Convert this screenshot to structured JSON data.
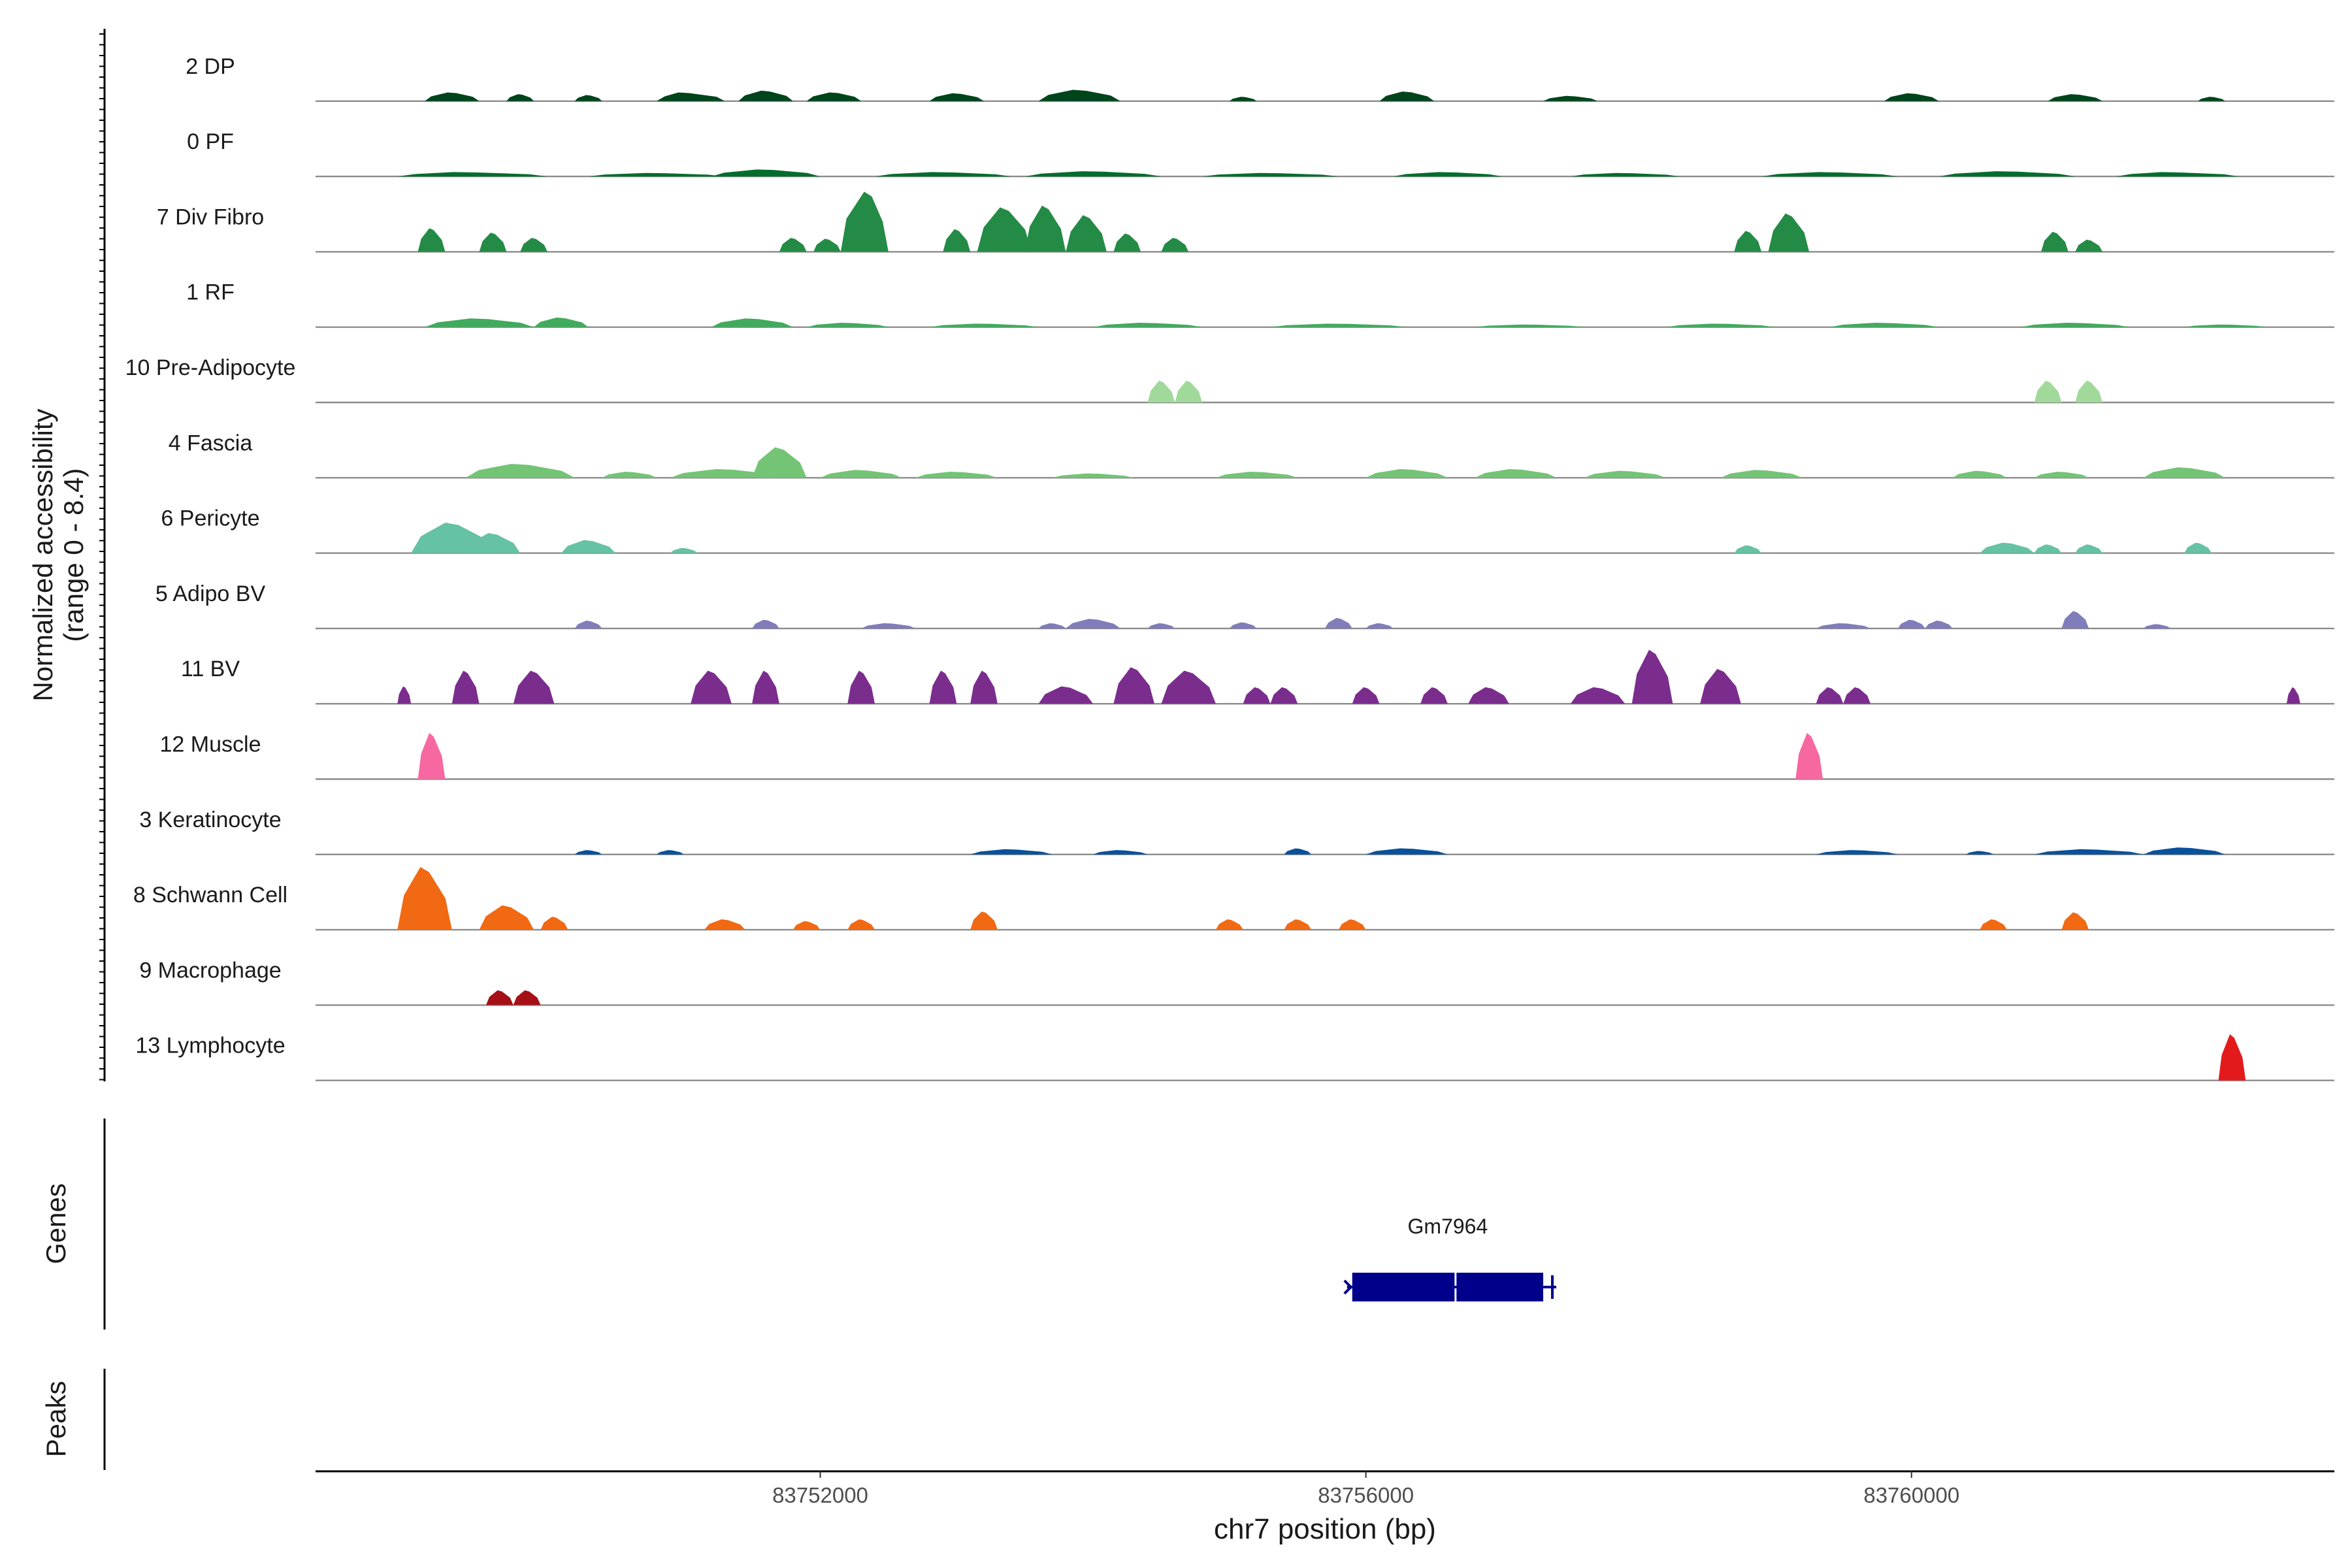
{
  "chart_data": {
    "type": "area",
    "title": "",
    "ylabel_line1": "Normalized accessibility",
    "ylabel_line2": "(range 0 - 8.4)",
    "y_range": [
      0,
      8.4
    ],
    "xlabel": "chr7 position (bp)",
    "xlim": [
      83748300,
      83763100
    ],
    "x_ticks": [
      83752000,
      83756000,
      83760000
    ],
    "x_tick_labels": [
      "83752000",
      "83756000",
      "83760000"
    ],
    "genes_label": "Genes",
    "peaks_label": "Peaks",
    "gene": {
      "name": "Gm7964",
      "start": 83755900,
      "end": 83757300,
      "strand": "-",
      "color": "#00008B"
    },
    "tracks": [
      {
        "name": "2 DP",
        "color": "#00441B",
        "peaks": [
          [
            83749300,
            83749100,
            83749500,
            1.0
          ],
          [
            83749800,
            83749700,
            83749900,
            0.8
          ],
          [
            83750300,
            83750200,
            83750400,
            0.7
          ],
          [
            83751000,
            83750800,
            83751300,
            1.0
          ],
          [
            83751600,
            83751400,
            83751800,
            1.2
          ],
          [
            83752100,
            83751900,
            83752300,
            1.0
          ],
          [
            83753000,
            83752800,
            83753200,
            0.9
          ],
          [
            83753900,
            83753600,
            83754200,
            1.3
          ],
          [
            83755100,
            83755000,
            83755200,
            0.5
          ],
          [
            83756300,
            83756100,
            83756500,
            1.1
          ],
          [
            83757500,
            83757300,
            83757700,
            0.6
          ],
          [
            83760000,
            83759800,
            83760200,
            0.9
          ],
          [
            83761200,
            83761000,
            83761400,
            0.8
          ],
          [
            83762200,
            83762100,
            83762300,
            0.5
          ]
        ]
      },
      {
        "name": "0 PF",
        "color": "#006D2C",
        "peaks": [
          [
            83749400,
            83748900,
            83750000,
            0.5
          ],
          [
            83750800,
            83750300,
            83751300,
            0.4
          ],
          [
            83751600,
            83751200,
            83752000,
            0.8
          ],
          [
            83752900,
            83752400,
            83753400,
            0.5
          ],
          [
            83754000,
            83753500,
            83754500,
            0.6
          ],
          [
            83755300,
            83754800,
            83755800,
            0.4
          ],
          [
            83756600,
            83756200,
            83757000,
            0.5
          ],
          [
            83757900,
            83757500,
            83758300,
            0.4
          ],
          [
            83759400,
            83758900,
            83759900,
            0.5
          ],
          [
            83760700,
            83760200,
            83761200,
            0.6
          ],
          [
            83761900,
            83761500,
            83762400,
            0.5
          ]
        ]
      },
      {
        "name": "7 Div Fibro",
        "color": "#238B45",
        "peaks": [
          [
            83749150,
            83749050,
            83749250,
            2.7
          ],
          [
            83749600,
            83749500,
            83749700,
            2.2
          ],
          [
            83749900,
            83749800,
            83750000,
            1.6
          ],
          [
            83751800,
            83751700,
            83751900,
            1.6
          ],
          [
            83752050,
            83751950,
            83752150,
            1.5
          ],
          [
            83752350,
            83752150,
            83752500,
            6.9
          ],
          [
            83753000,
            83752900,
            83753100,
            2.6
          ],
          [
            83753350,
            83753150,
            83753550,
            5.1
          ],
          [
            83753650,
            83753500,
            83753800,
            5.3
          ],
          [
            83753950,
            83753800,
            83754100,
            4.2
          ],
          [
            83754250,
            83754150,
            83754350,
            2.1
          ],
          [
            83754600,
            83754500,
            83754700,
            1.6
          ],
          [
            83758800,
            83758700,
            83758900,
            2.4
          ],
          [
            83759100,
            83758950,
            83759250,
            4.4
          ],
          [
            83761050,
            83760950,
            83761150,
            2.3
          ],
          [
            83761300,
            83761200,
            83761400,
            1.4
          ]
        ]
      },
      {
        "name": "1 RF",
        "color": "#41AB5D",
        "peaks": [
          [
            83749500,
            83749100,
            83749900,
            1.0
          ],
          [
            83750100,
            83749900,
            83750300,
            1.1
          ],
          [
            83751500,
            83751200,
            83751800,
            1.0
          ],
          [
            83752200,
            83751900,
            83752500,
            0.5
          ],
          [
            83753200,
            83752800,
            83753600,
            0.4
          ],
          [
            83754400,
            83754000,
            83754800,
            0.5
          ],
          [
            83755800,
            83755300,
            83756300,
            0.4
          ],
          [
            83757200,
            83756800,
            83757600,
            0.3
          ],
          [
            83758600,
            83758200,
            83759000,
            0.4
          ],
          [
            83759800,
            83759400,
            83760200,
            0.5
          ],
          [
            83761200,
            83760800,
            83761600,
            0.5
          ],
          [
            83762300,
            83762000,
            83762600,
            0.3
          ]
        ]
      },
      {
        "name": "10 Pre-Adipocyte",
        "color": "#A1D99B",
        "peaks": [
          [
            83754500,
            83754400,
            83754600,
            2.5
          ],
          [
            83754700,
            83754600,
            83754800,
            2.5
          ],
          [
            83761000,
            83760900,
            83761100,
            2.5
          ],
          [
            83761300,
            83761200,
            83761400,
            2.5
          ]
        ]
      },
      {
        "name": "4 Fascia",
        "color": "#74C476",
        "peaks": [
          [
            83749800,
            83749400,
            83750200,
            1.6
          ],
          [
            83750600,
            83750400,
            83750800,
            0.7
          ],
          [
            83751300,
            83750900,
            83751700,
            1.0
          ],
          [
            83751700,
            83751500,
            83751900,
            3.5
          ],
          [
            83752300,
            83752000,
            83752600,
            0.9
          ],
          [
            83753000,
            83752700,
            83753300,
            0.7
          ],
          [
            83754000,
            83753700,
            83754300,
            0.5
          ],
          [
            83755200,
            83754900,
            83755500,
            0.7
          ],
          [
            83756300,
            83756000,
            83756600,
            1.0
          ],
          [
            83757100,
            83756800,
            83757400,
            1.0
          ],
          [
            83757900,
            83757600,
            83758200,
            0.8
          ],
          [
            83758900,
            83758600,
            83759200,
            0.9
          ],
          [
            83760500,
            83760300,
            83760700,
            0.8
          ],
          [
            83761100,
            83760900,
            83761300,
            0.7
          ],
          [
            83762000,
            83761700,
            83762300,
            1.2
          ]
        ]
      },
      {
        "name": "6 Pericyte",
        "color": "#66C2A4",
        "peaks": [
          [
            83749300,
            83749000,
            83749600,
            3.5
          ],
          [
            83749600,
            83749400,
            83749800,
            2.3
          ],
          [
            83750300,
            83750100,
            83750500,
            1.5
          ],
          [
            83751000,
            83750900,
            83751100,
            0.6
          ],
          [
            83758800,
            83758700,
            83758900,
            0.9
          ],
          [
            83760700,
            83760500,
            83760900,
            1.2
          ],
          [
            83761000,
            83760900,
            83761100,
            1.0
          ],
          [
            83761300,
            83761200,
            83761400,
            1.0
          ],
          [
            83762100,
            83762000,
            83762200,
            1.2
          ]
        ]
      },
      {
        "name": "5 Adipo BV",
        "color": "#807DBA",
        "peaks": [
          [
            83750300,
            83750200,
            83750400,
            0.9
          ],
          [
            83751600,
            83751500,
            83751700,
            1.0
          ],
          [
            83752500,
            83752300,
            83752700,
            0.6
          ],
          [
            83753700,
            83753600,
            83753800,
            0.6
          ],
          [
            83754000,
            83753800,
            83754200,
            1.1
          ],
          [
            83754500,
            83754400,
            83754600,
            0.6
          ],
          [
            83755100,
            83755000,
            83755200,
            0.7
          ],
          [
            83755800,
            83755700,
            83755900,
            1.2
          ],
          [
            83756100,
            83756000,
            83756200,
            0.6
          ],
          [
            83759500,
            83759300,
            83759700,
            0.6
          ],
          [
            83760000,
            83759900,
            83760100,
            1.0
          ],
          [
            83760200,
            83760100,
            83760300,
            0.9
          ],
          [
            83761200,
            83761100,
            83761300,
            2.0
          ],
          [
            83761800,
            83761700,
            83761900,
            0.5
          ]
        ]
      },
      {
        "name": "11 BV",
        "color": "#7B2D8E",
        "peaks": [
          [
            83748950,
            83748900,
            83749000,
            2.0
          ],
          [
            83749400,
            83749300,
            83749500,
            3.8
          ],
          [
            83749900,
            83749750,
            83750050,
            3.8
          ],
          [
            83751200,
            83751050,
            83751350,
            3.8
          ],
          [
            83751600,
            83751500,
            83751700,
            3.8
          ],
          [
            83752300,
            83752200,
            83752400,
            3.8
          ],
          [
            83752900,
            83752800,
            83753000,
            3.8
          ],
          [
            83753200,
            83753100,
            83753300,
            3.8
          ],
          [
            83753800,
            83753600,
            83754000,
            2.0
          ],
          [
            83754300,
            83754150,
            83754450,
            4.2
          ],
          [
            83754700,
            83754500,
            83754900,
            3.8
          ],
          [
            83755200,
            83755100,
            83755300,
            1.9
          ],
          [
            83755400,
            83755300,
            83755500,
            1.9
          ],
          [
            83756000,
            83755900,
            83756100,
            1.9
          ],
          [
            83756500,
            83756400,
            83756600,
            1.9
          ],
          [
            83756900,
            83756750,
            83757050,
            1.9
          ],
          [
            83757700,
            83757500,
            83757900,
            1.9
          ],
          [
            83758100,
            83757950,
            83758250,
            6.2
          ],
          [
            83758600,
            83758450,
            83758750,
            4.0
          ],
          [
            83759400,
            83759300,
            83759500,
            1.9
          ],
          [
            83759600,
            83759500,
            83759700,
            1.9
          ],
          [
            83762800,
            83762750,
            83762850,
            1.9
          ]
        ]
      },
      {
        "name": "12 Muscle",
        "color": "#F768A1",
        "peaks": [
          [
            83749150,
            83749050,
            83749250,
            5.3
          ],
          [
            83759250,
            83759150,
            83759350,
            5.3
          ]
        ]
      },
      {
        "name": "3 Keratinocyte",
        "color": "#08519C",
        "peaks": [
          [
            83750300,
            83750200,
            83750400,
            0.5
          ],
          [
            83750900,
            83750800,
            83751000,
            0.5
          ],
          [
            83753400,
            83753100,
            83753700,
            0.6
          ],
          [
            83754200,
            83754000,
            83754400,
            0.5
          ],
          [
            83755500,
            83755400,
            83755600,
            0.7
          ],
          [
            83756300,
            83756000,
            83756600,
            0.7
          ],
          [
            83759600,
            83759300,
            83759900,
            0.5
          ],
          [
            83760500,
            83760400,
            83760600,
            0.4
          ],
          [
            83761300,
            83760900,
            83761700,
            0.6
          ],
          [
            83762000,
            83761700,
            83762300,
            0.8
          ]
        ]
      },
      {
        "name": "8 Schwann Cell",
        "color": "#F16913",
        "peaks": [
          [
            83749100,
            83748900,
            83749300,
            7.2
          ],
          [
            83749700,
            83749500,
            83749900,
            2.8
          ],
          [
            83750050,
            83749950,
            83750150,
            1.5
          ],
          [
            83751300,
            83751150,
            83751450,
            1.2
          ],
          [
            83751900,
            83751800,
            83752000,
            1.0
          ],
          [
            83752300,
            83752200,
            83752400,
            1.2
          ],
          [
            83753200,
            83753100,
            83753300,
            2.1
          ],
          [
            83755000,
            83754900,
            83755100,
            1.2
          ],
          [
            83755500,
            83755400,
            83755600,
            1.2
          ],
          [
            83755900,
            83755800,
            83756000,
            1.2
          ],
          [
            83760600,
            83760500,
            83760700,
            1.2
          ],
          [
            83761200,
            83761100,
            83761300,
            2.0
          ]
        ]
      },
      {
        "name": "9 Macrophage",
        "color": "#A50F15",
        "peaks": [
          [
            83749650,
            83749550,
            83749750,
            1.7
          ],
          [
            83749850,
            83749750,
            83749950,
            1.7
          ]
        ]
      },
      {
        "name": "13 Lymphocyte",
        "color": "#E31A1C",
        "peaks": [
          [
            83762350,
            83762250,
            83762450,
            5.3
          ]
        ]
      }
    ]
  }
}
